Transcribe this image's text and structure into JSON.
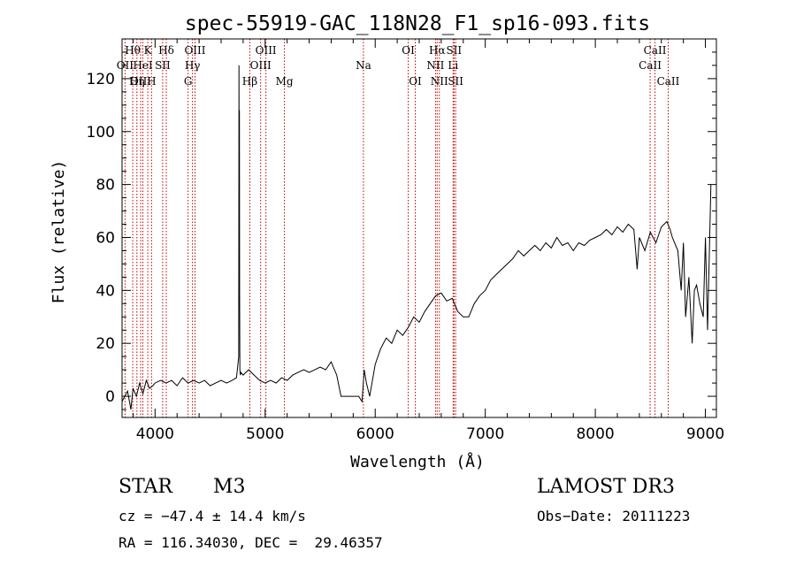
{
  "chart_data": {
    "type": "line",
    "title": "spec-55919-GAC_118N28_F1_sp16-093.fits",
    "xlabel": "Wavelength (Å)",
    "ylabel": "Flux (relative)",
    "xlim": [
      3700,
      9100
    ],
    "ylim": [
      -8,
      135
    ],
    "xticks": [
      4000,
      5000,
      6000,
      7000,
      8000,
      9000
    ],
    "yticks": [
      0,
      20,
      40,
      60,
      80,
      100,
      120
    ],
    "grid": false,
    "line_color": "#000000",
    "marker_color": "#c00000",
    "series": [
      {
        "x": [
          3700,
          3750,
          3780,
          3800,
          3830,
          3860,
          3890,
          3920,
          3950,
          3980,
          4000,
          4050,
          4100,
          4150,
          4200,
          4250,
          4300,
          4350,
          4400,
          4450,
          4500,
          4550,
          4600,
          4650,
          4700,
          4740,
          4760,
          4762,
          4764,
          4766,
          4768,
          4770,
          4775,
          4780,
          4800,
          4850,
          4900,
          4950,
          5000,
          5050,
          5100,
          5150,
          5200,
          5250,
          5300,
          5350,
          5400,
          5450,
          5500,
          5550,
          5600,
          5650,
          5690,
          5700,
          5750,
          5800,
          5850,
          5880,
          5900,
          5920,
          5950,
          6000,
          6050,
          6100,
          6150,
          6200,
          6250,
          6300,
          6350,
          6400,
          6450,
          6500,
          6550,
          6600,
          6650,
          6700,
          6750,
          6800,
          6850,
          6900,
          6950,
          7000,
          7050,
          7100,
          7150,
          7200,
          7250,
          7300,
          7350,
          7400,
          7450,
          7500,
          7550,
          7600,
          7650,
          7700,
          7750,
          7800,
          7850,
          7900,
          7950,
          8000,
          8050,
          8100,
          8150,
          8200,
          8250,
          8300,
          8350,
          8380,
          8400,
          8420,
          8450,
          8500,
          8550,
          8600,
          8650,
          8680,
          8700,
          8750,
          8780,
          8800,
          8820,
          8850,
          8880,
          8900,
          8920,
          8950,
          8980,
          9000,
          9020,
          9050
        ],
        "y": [
          -2,
          2,
          -5,
          3,
          0,
          5,
          1,
          6,
          3,
          4,
          5,
          6,
          5,
          6,
          4,
          7,
          5,
          6,
          5,
          6,
          4,
          5,
          6,
          5,
          6,
          7,
          15,
          125,
          60,
          108,
          40,
          10,
          8,
          9,
          8,
          10,
          8,
          6,
          5,
          6,
          5,
          7,
          6,
          8,
          9,
          10,
          9,
          10,
          11,
          10,
          13,
          8,
          0,
          0,
          0,
          0,
          0,
          -2,
          10,
          5,
          0,
          12,
          18,
          22,
          20,
          25,
          23,
          26,
          30,
          28,
          32,
          35,
          38,
          39,
          36,
          37,
          32,
          30,
          30,
          35,
          38,
          40,
          44,
          46,
          48,
          50,
          52,
          55,
          53,
          55,
          57,
          55,
          58,
          56,
          60,
          57,
          58,
          55,
          58,
          57,
          59,
          60,
          61,
          63,
          61,
          64,
          62,
          65,
          63,
          48,
          60,
          58,
          55,
          62,
          58,
          64,
          66,
          63,
          60,
          55,
          40,
          58,
          30,
          45,
          20,
          40,
          42,
          35,
          30,
          60,
          25,
          80
        ]
      }
    ],
    "lines": [
      {
        "x": 3797,
        "label": "Hθ",
        "row": 1
      },
      {
        "x": 3727,
        "label": "OII",
        "row": 2
      },
      {
        "x": 3869,
        "label": "OIII",
        "row": 3
      },
      {
        "x": 3835,
        "label": "Hη",
        "row": 3
      },
      {
        "x": 3934,
        "label": "K",
        "row": 1
      },
      {
        "x": 3889,
        "label": "HeI",
        "row": 2
      },
      {
        "x": 3968,
        "label": "H",
        "row": 3
      },
      {
        "x": 4069,
        "label": "SII",
        "row": 2
      },
      {
        "x": 4102,
        "label": "Hδ",
        "row": 1
      },
      {
        "x": 4300,
        "label": "G",
        "row": 3
      },
      {
        "x": 4340,
        "label": "Hγ",
        "row": 2
      },
      {
        "x": 4363,
        "label": "OIII",
        "row": 1
      },
      {
        "x": 4861,
        "label": "Hβ",
        "row": 3
      },
      {
        "x": 4959,
        "label": "OIII",
        "row": 2
      },
      {
        "x": 5007,
        "label": "OIII",
        "row": 1
      },
      {
        "x": 5175,
        "label": "Mg",
        "row": 3
      },
      {
        "x": 5893,
        "label": "Na",
        "row": 2
      },
      {
        "x": 6300,
        "label": "OI",
        "row": 1
      },
      {
        "x": 6364,
        "label": "OI",
        "row": 3
      },
      {
        "x": 6548,
        "label": "NII",
        "row": 2
      },
      {
        "x": 6563,
        "label": "Hα",
        "row": 1
      },
      {
        "x": 6583,
        "label": "NII",
        "row": 3
      },
      {
        "x": 6708,
        "label": "Li",
        "row": 2
      },
      {
        "x": 6716,
        "label": "SII",
        "row": 1
      },
      {
        "x": 6731,
        "label": "SII",
        "row": 3
      },
      {
        "x": 8498,
        "label": "CaII",
        "row": 2
      },
      {
        "x": 8542,
        "label": "CaII",
        "row": 1
      },
      {
        "x": 8662,
        "label": "CaII",
        "row": 3
      }
    ]
  },
  "info": {
    "object_class": "STAR",
    "subclass": "M3",
    "survey": "LAMOST DR3",
    "redshift": "cz = −47.4 ± 14.4 km/s",
    "obs_date": "Obs−Date: 20111223",
    "coords": "RA = 116.34030, DEC =  29.46357"
  }
}
